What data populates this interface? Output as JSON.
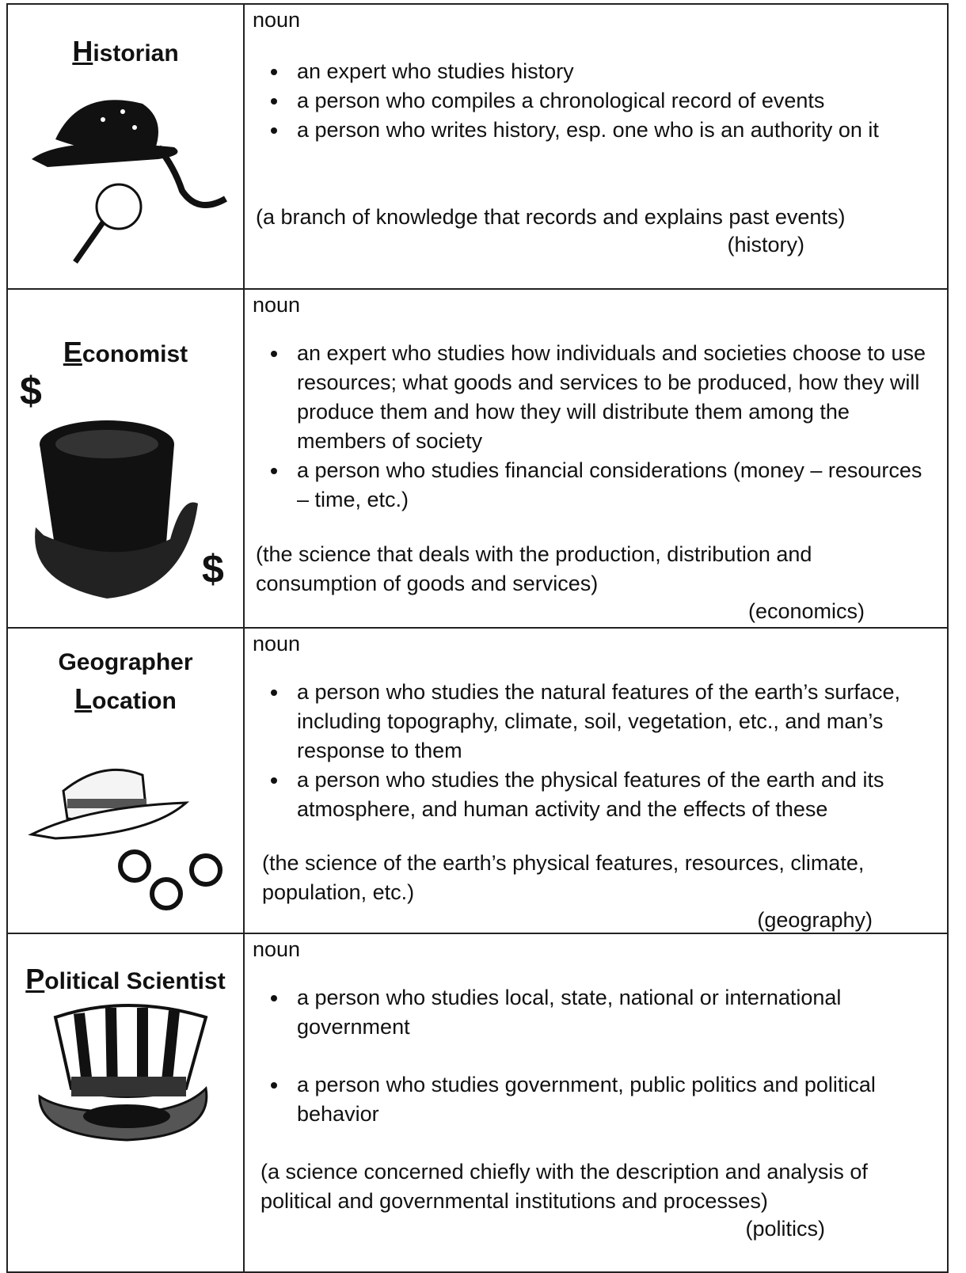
{
  "rows": [
    {
      "title": "Historian",
      "pos": "noun",
      "senses": [
        "an expert who studies history",
        "a person who compiles a chronological record of events",
        "a person who writes history, esp. one who is an authority on it"
      ],
      "definition": "(a branch of knowledge that records and explains past events)",
      "word": "(history)"
    },
    {
      "title": "Economist",
      "pos": "noun",
      "senses": [
        "an expert who studies how individuals and societies choose to use resources; what goods and services to be produced, how they will produce them and how they will distribute them among the members of society",
        "a person who studies financial considerations (money – resources – time, etc.)"
      ],
      "definition": "(the science that deals with the production, distribution and consumption of goods and services)",
      "word": "(economics)"
    },
    {
      "title": "Geographer",
      "subtitle": "Location",
      "pos": "noun",
      "senses": [
        "a person who studies the natural features of the earth’s surface, including topography, climate, soil, vegetation, etc., and man’s response to them",
        "a person who studies the physical features of the earth and its atmosphere, and human activity and the effects of these"
      ],
      "definition": "(the science of the earth’s physical features, resources, climate, population, etc.)",
      "word": "(geography)"
    },
    {
      "title": "Political Scientist",
      "pos": "noun",
      "senses": [
        "a person who studies local, state, national or international government",
        "a person who studies government, public politics and political behavior"
      ],
      "definition": "(a science concerned chiefly with the description and analysis of political and governmental institutions and processes)",
      "word": "(politics)"
    }
  ]
}
